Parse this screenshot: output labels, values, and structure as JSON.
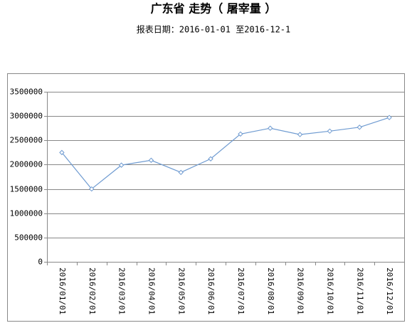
{
  "chart_data": {
    "type": "line",
    "title": "广东省  走势（  屠宰量  ）",
    "subtitle": "报表日期：2016-01-01 至2016-12-1",
    "categories": [
      "2016/01/01",
      "2016/02/01",
      "2016/03/01",
      "2016/04/01",
      "2016/05/01",
      "2016/06/01",
      "2016/07/01",
      "2016/08/01",
      "2016/09/01",
      "2016/10/01",
      "2016/11/01",
      "2016/12/01"
    ],
    "series": [
      {
        "color": "#6f9bd1",
        "values": [
          2250000,
          1500000,
          1990000,
          2090000,
          1840000,
          2120000,
          2630000,
          2750000,
          2620000,
          2690000,
          2770000,
          2970000
        ]
      }
    ],
    "ylim": [
      0,
      3500000
    ],
    "yticks": [
      0,
      500000,
      1000000,
      1500000,
      2000000,
      2500000,
      3000000,
      3500000
    ],
    "grid": true
  }
}
